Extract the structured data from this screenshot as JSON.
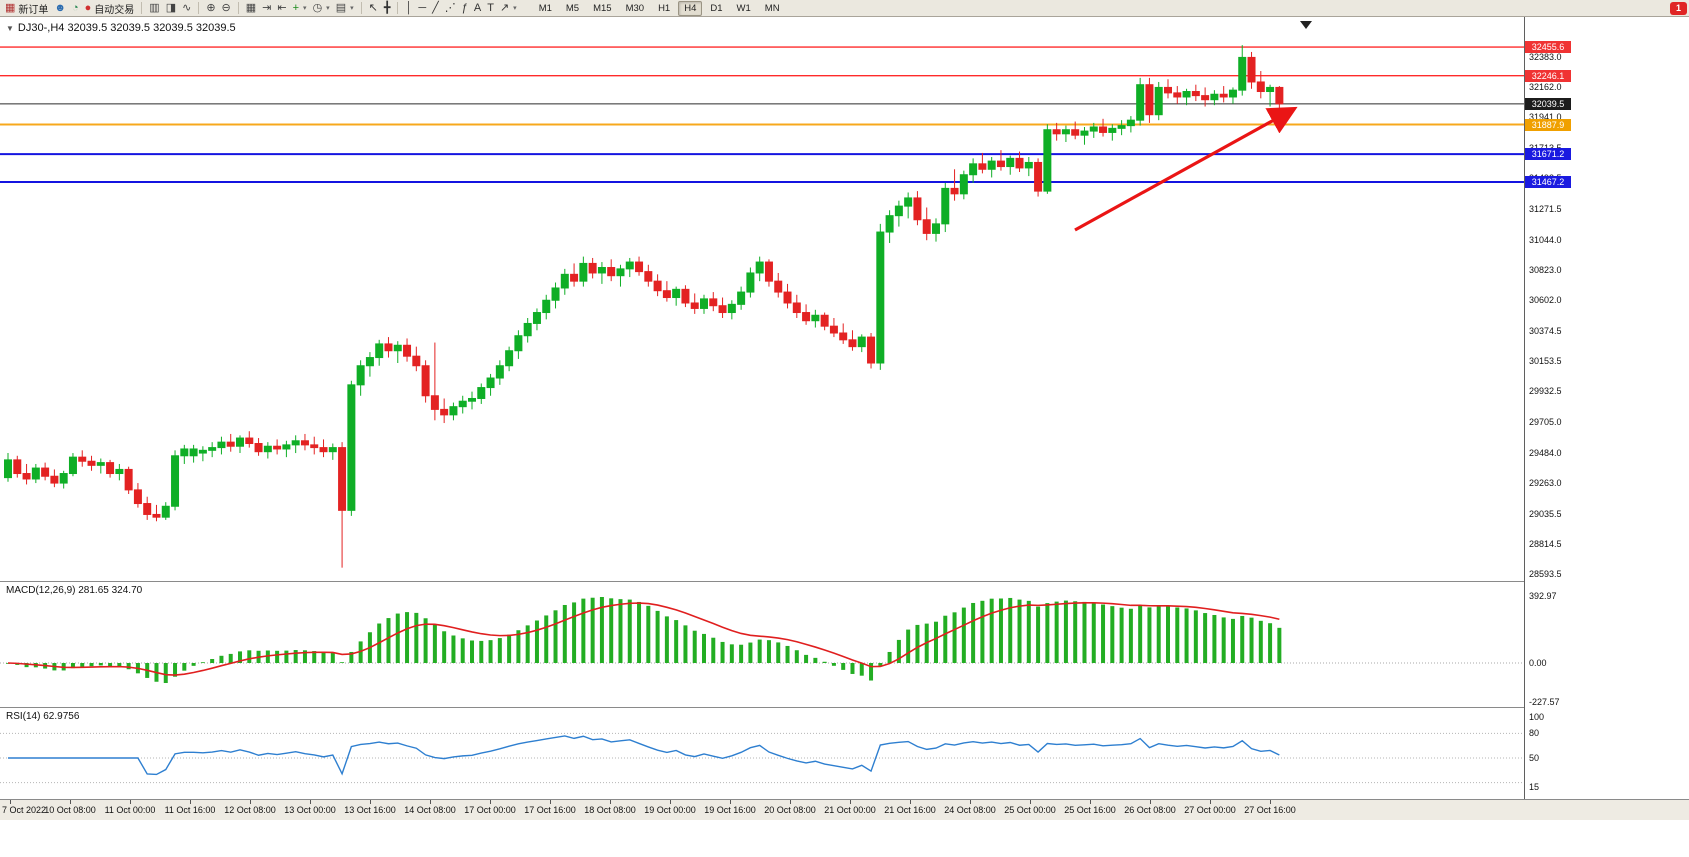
{
  "toolbar": {
    "items": [
      {
        "t": "btn",
        "name": "new-order-button",
        "glyph": "▦",
        "color": "#b03030",
        "label": "新订单"
      },
      {
        "t": "icon",
        "name": "profile-icon",
        "glyph": "☻",
        "color": "#2b6cb0"
      },
      {
        "t": "icon",
        "name": "data-window-icon",
        "glyph": "◔",
        "color": "#2e8b57"
      },
      {
        "t": "btn",
        "name": "autotrading-button",
        "glyph": "●",
        "color": "#d03030",
        "label": "自动交易"
      },
      {
        "t": "sep"
      },
      {
        "t": "icon",
        "name": "bar-chart-icon",
        "glyph": "▥",
        "color": "#444"
      },
      {
        "t": "icon",
        "name": "candlestick-chart-icon",
        "glyph": "◨",
        "color": "#444"
      },
      {
        "t": "icon",
        "name": "line-chart-icon",
        "glyph": "∿",
        "color": "#444"
      },
      {
        "t": "sep"
      },
      {
        "t": "icon",
        "name": "zoom-in-icon",
        "glyph": "⊕",
        "color": "#444"
      },
      {
        "t": "icon",
        "name": "zoom-out-icon",
        "glyph": "⊖",
        "color": "#444"
      },
      {
        "t": "sep"
      },
      {
        "t": "icon",
        "name": "tile-windows-icon",
        "glyph": "▦",
        "color": "#444"
      },
      {
        "t": "icon",
        "name": "auto-scroll-icon",
        "glyph": "⇥",
        "color": "#444"
      },
      {
        "t": "icon",
        "name": "chart-shift-icon",
        "glyph": "⇤",
        "color": "#444"
      },
      {
        "t": "dd",
        "name": "indicators-button",
        "glyph": "+",
        "color": "#1a8a1a"
      },
      {
        "t": "dd",
        "name": "periods-button",
        "glyph": "◷",
        "color": "#444"
      },
      {
        "t": "dd",
        "name": "templates-button",
        "glyph": "▤",
        "color": "#444"
      },
      {
        "t": "sep"
      },
      {
        "t": "icon",
        "name": "cursor-icon",
        "glyph": "↖",
        "color": "#333"
      },
      {
        "t": "icon",
        "name": "crosshair-icon",
        "glyph": "╋",
        "color": "#333"
      },
      {
        "t": "sep"
      },
      {
        "t": "icon",
        "name": "vertical-line-icon",
        "glyph": "│",
        "color": "#333"
      },
      {
        "t": "icon",
        "name": "horizontal-line-icon",
        "glyph": "─",
        "color": "#333"
      },
      {
        "t": "icon",
        "name": "trendline-icon",
        "glyph": "╱",
        "color": "#333"
      },
      {
        "t": "icon",
        "name": "channel-icon",
        "glyph": "⋰",
        "color": "#333"
      },
      {
        "t": "icon",
        "name": "fibonacci-icon",
        "glyph": "ƒ",
        "color": "#333"
      },
      {
        "t": "icon",
        "name": "text-icon",
        "glyph": "A",
        "color": "#333"
      },
      {
        "t": "icon",
        "name": "text-label-icon",
        "glyph": "T",
        "color": "#333"
      },
      {
        "t": "dd",
        "name": "arrows-button",
        "glyph": "↗",
        "color": "#333"
      }
    ],
    "timeframes": [
      "M1",
      "M5",
      "M15",
      "M30",
      "H1",
      "H4",
      "D1",
      "W1",
      "MN"
    ],
    "active_timeframe": "H4",
    "notification_count": "1"
  },
  "chart": {
    "title_full": "DJ30-,H4 32039.5 32039.5 32039.5 32039.5"
  },
  "macd": {
    "label": "MACD(12,26,9) 281.65 324.70"
  },
  "rsi": {
    "label": "RSI(14) 62.9756"
  },
  "colors": {
    "up": "#0fae26",
    "down": "#e32222",
    "macd_hist": "#23ad23",
    "macd_signal": "#e01f1f",
    "rsi_line": "#2e7fd0",
    "arrow": "#ea1515",
    "current_price_badge": "#1c1c1c",
    "resistance_line": "#ff2a2a",
    "pivot_line": "#f7a81c",
    "support_line": "#1414e0"
  },
  "chart_data": {
    "type": "candlestick",
    "symbol": "DJ30-",
    "timeframe": "H4",
    "last_close": 32039.5,
    "y_axis_ticks": [
      "32383.0",
      "32162.0",
      "31941.0",
      "31713.5",
      "31492.5",
      "31271.5",
      "31044.0",
      "30823.0",
      "30602.0",
      "30374.5",
      "30153.5",
      "29932.5",
      "29705.0",
      "29484.0",
      "29263.0",
      "29035.5",
      "28814.5",
      "28593.5"
    ],
    "x_labels": [
      "7 Oct 2022",
      "10 Oct 08:00",
      "11 Oct 00:00",
      "11 Oct 16:00",
      "12 Oct 08:00",
      "13 Oct 00:00",
      "13 Oct 16:00",
      "14 Oct 08:00",
      "17 Oct 00:00",
      "17 Oct 16:00",
      "18 Oct 08:00",
      "19 Oct 00:00",
      "19 Oct 16:00",
      "20 Oct 08:00",
      "21 Oct 00:00",
      "21 Oct 16:00",
      "24 Oct 08:00",
      "25 Oct 00:00",
      "25 Oct 16:00",
      "26 Oct 08:00",
      "27 Oct 00:00",
      "27 Oct 16:00"
    ],
    "levels": [
      {
        "label": "32455.6",
        "value": 32455.6,
        "color": "#ff2a2a",
        "width": 1.4,
        "badge_bg": "#f03333"
      },
      {
        "label": "32246.1",
        "value": 32246.1,
        "color": "#ff2a2a",
        "width": 1.4,
        "badge_bg": "#f03333"
      },
      {
        "label": "32039.5",
        "value": 32039.5,
        "color": "#2b2b2b",
        "width": 1.1,
        "badge_bg": "#1c1c1c"
      },
      {
        "label": "31887.9",
        "value": 31887.9,
        "color": "#f7a81c",
        "width": 2,
        "badge_bg": "#f0a000"
      },
      {
        "label": "31671.2",
        "value": 31671.2,
        "color": "#1414e0",
        "width": 2,
        "badge_bg": "#1a1ae0"
      },
      {
        "label": "31467.2",
        "value": 31467.2,
        "color": "#1414e0",
        "width": 2,
        "badge_bg": "#1a1ae0"
      }
    ],
    "ohlc": [
      [
        29300,
        29480,
        29270,
        29430
      ],
      [
        29430,
        29460,
        29300,
        29330
      ],
      [
        29330,
        29400,
        29250,
        29290
      ],
      [
        29290,
        29400,
        29260,
        29370
      ],
      [
        29370,
        29410,
        29280,
        29310
      ],
      [
        29310,
        29360,
        29230,
        29260
      ],
      [
        29260,
        29350,
        29220,
        29330
      ],
      [
        29330,
        29480,
        29310,
        29450
      ],
      [
        29450,
        29500,
        29380,
        29420
      ],
      [
        29420,
        29460,
        29350,
        29390
      ],
      [
        29390,
        29440,
        29330,
        29410
      ],
      [
        29410,
        29430,
        29300,
        29330
      ],
      [
        29330,
        29400,
        29280,
        29360
      ],
      [
        29360,
        29380,
        29180,
        29210
      ],
      [
        29210,
        29260,
        29080,
        29110
      ],
      [
        29110,
        29160,
        28990,
        29030
      ],
      [
        29030,
        29100,
        28980,
        29010
      ],
      [
        29010,
        29120,
        28990,
        29090
      ],
      [
        29090,
        29500,
        29060,
        29460
      ],
      [
        29460,
        29540,
        29400,
        29510
      ],
      [
        29460,
        29540,
        29410,
        29510
      ],
      [
        29480,
        29530,
        29420,
        29500
      ],
      [
        29500,
        29560,
        29450,
        29520
      ],
      [
        29520,
        29600,
        29470,
        29560
      ],
      [
        29560,
        29620,
        29490,
        29530
      ],
      [
        29530,
        29610,
        29480,
        29590
      ],
      [
        29590,
        29640,
        29520,
        29550
      ],
      [
        29550,
        29590,
        29460,
        29490
      ],
      [
        29490,
        29560,
        29440,
        29530
      ],
      [
        29530,
        29580,
        29470,
        29510
      ],
      [
        29510,
        29570,
        29450,
        29540
      ],
      [
        29540,
        29610,
        29480,
        29570
      ],
      [
        29570,
        29620,
        29500,
        29540
      ],
      [
        29540,
        29600,
        29470,
        29520
      ],
      [
        29520,
        29580,
        29450,
        29490
      ],
      [
        29490,
        29550,
        29430,
        29520
      ],
      [
        29520,
        29560,
        28640,
        29060
      ],
      [
        29060,
        30010,
        29020,
        29980
      ],
      [
        29980,
        30160,
        29900,
        30120
      ],
      [
        30120,
        30220,
        30040,
        30180
      ],
      [
        30180,
        30310,
        30120,
        30280
      ],
      [
        30280,
        30330,
        30180,
        30230
      ],
      [
        30230,
        30300,
        30140,
        30270
      ],
      [
        30270,
        30320,
        30150,
        30190
      ],
      [
        30190,
        30260,
        30080,
        30120
      ],
      [
        30120,
        30160,
        29850,
        29900
      ],
      [
        29900,
        30290,
        29720,
        29800
      ],
      [
        29800,
        29880,
        29700,
        29760
      ],
      [
        29760,
        29850,
        29720,
        29820
      ],
      [
        29820,
        29900,
        29770,
        29860
      ],
      [
        29860,
        29930,
        29800,
        29880
      ],
      [
        29880,
        29990,
        29840,
        29960
      ],
      [
        29960,
        30060,
        29900,
        30030
      ],
      [
        30030,
        30160,
        29980,
        30120
      ],
      [
        30120,
        30260,
        30080,
        30230
      ],
      [
        30230,
        30380,
        30170,
        30340
      ],
      [
        30340,
        30470,
        30290,
        30430
      ],
      [
        30430,
        30540,
        30380,
        30510
      ],
      [
        30510,
        30640,
        30460,
        30600
      ],
      [
        30600,
        30730,
        30540,
        30690
      ],
      [
        30690,
        30830,
        30640,
        30790
      ],
      [
        30790,
        30870,
        30700,
        30740
      ],
      [
        30740,
        30920,
        30700,
        30870
      ],
      [
        30870,
        30910,
        30760,
        30800
      ],
      [
        30800,
        30880,
        30720,
        30840
      ],
      [
        30840,
        30900,
        30740,
        30780
      ],
      [
        30780,
        30860,
        30700,
        30830
      ],
      [
        30830,
        30910,
        30770,
        30880
      ],
      [
        30880,
        30920,
        30780,
        30810
      ],
      [
        30810,
        30860,
        30700,
        30740
      ],
      [
        30740,
        30790,
        30630,
        30670
      ],
      [
        30670,
        30740,
        30590,
        30620
      ],
      [
        30620,
        30700,
        30560,
        30680
      ],
      [
        30680,
        30710,
        30550,
        30580
      ],
      [
        30580,
        30650,
        30500,
        30540
      ],
      [
        30540,
        30640,
        30500,
        30610
      ],
      [
        30610,
        30660,
        30520,
        30560
      ],
      [
        30560,
        30620,
        30470,
        30510
      ],
      [
        30510,
        30600,
        30460,
        30570
      ],
      [
        30570,
        30700,
        30530,
        30660
      ],
      [
        30660,
        30840,
        30620,
        30800
      ],
      [
        30800,
        30920,
        30740,
        30880
      ],
      [
        30880,
        30900,
        30700,
        30740
      ],
      [
        30740,
        30800,
        30620,
        30660
      ],
      [
        30660,
        30720,
        30540,
        30580
      ],
      [
        30580,
        30640,
        30470,
        30510
      ],
      [
        30510,
        30570,
        30420,
        30450
      ],
      [
        30450,
        30530,
        30400,
        30490
      ],
      [
        30490,
        30510,
        30380,
        30410
      ],
      [
        30410,
        30470,
        30330,
        30360
      ],
      [
        30360,
        30430,
        30280,
        30310
      ],
      [
        30310,
        30380,
        30230,
        30260
      ],
      [
        30260,
        30350,
        30220,
        30330
      ],
      [
        30330,
        30360,
        30100,
        30140
      ],
      [
        30140,
        31160,
        30090,
        31100
      ],
      [
        31100,
        31260,
        31020,
        31220
      ],
      [
        31220,
        31330,
        31140,
        31290
      ],
      [
        31290,
        31390,
        31200,
        31350
      ],
      [
        31350,
        31400,
        31150,
        31190
      ],
      [
        31190,
        31280,
        31040,
        31090
      ],
      [
        31090,
        31200,
        31030,
        31160
      ],
      [
        31160,
        31460,
        31100,
        31420
      ],
      [
        31420,
        31560,
        31330,
        31380
      ],
      [
        31380,
        31550,
        31340,
        31520
      ],
      [
        31520,
        31640,
        31460,
        31600
      ],
      [
        31600,
        31680,
        31530,
        31560
      ],
      [
        31560,
        31650,
        31500,
        31620
      ],
      [
        31620,
        31700,
        31550,
        31580
      ],
      [
        31580,
        31660,
        31520,
        31640
      ],
      [
        31640,
        31690,
        31540,
        31570
      ],
      [
        31570,
        31650,
        31510,
        31610
      ],
      [
        31610,
        31640,
        31360,
        31400
      ],
      [
        31400,
        31890,
        31380,
        31850
      ],
      [
        31850,
        31900,
        31770,
        31820
      ],
      [
        31820,
        31880,
        31760,
        31850
      ],
      [
        31850,
        31910,
        31780,
        31810
      ],
      [
        31810,
        31870,
        31740,
        31840
      ],
      [
        31840,
        31900,
        31790,
        31870
      ],
      [
        31870,
        31930,
        31800,
        31830
      ],
      [
        31830,
        31890,
        31770,
        31860
      ],
      [
        31860,
        31920,
        31810,
        31880
      ],
      [
        31880,
        31950,
        31830,
        31920
      ],
      [
        31920,
        32230,
        31880,
        32180
      ],
      [
        32180,
        32230,
        31900,
        31960
      ],
      [
        31960,
        32200,
        31920,
        32160
      ],
      [
        32160,
        32220,
        32080,
        32120
      ],
      [
        32120,
        32170,
        32040,
        32090
      ],
      [
        32090,
        32150,
        32030,
        32130
      ],
      [
        32130,
        32180,
        32060,
        32100
      ],
      [
        32100,
        32160,
        32020,
        32070
      ],
      [
        32070,
        32140,
        32030,
        32110
      ],
      [
        32110,
        32170,
        32050,
        32090
      ],
      [
        32090,
        32160,
        32040,
        32140
      ],
      [
        32140,
        32470,
        32100,
        32380
      ],
      [
        32380,
        32420,
        32150,
        32200
      ],
      [
        32200,
        32280,
        32080,
        32130
      ],
      [
        32130,
        32180,
        32020,
        32160
      ],
      [
        32160,
        32170,
        31990,
        32039.5
      ]
    ],
    "indicators": [
      {
        "type": "MACD",
        "fast": 12,
        "slow": 26,
        "signal": 9,
        "current_macd": 281.65,
        "current_signal": 324.7,
        "y_ticks": [
          "392.97",
          "0.00",
          "-227.57"
        ]
      },
      {
        "type": "RSI",
        "period": 14,
        "current": 62.9756,
        "y_ticks": [
          "100",
          "80",
          "50",
          "15"
        ],
        "levels": [
          80,
          50,
          20
        ]
      }
    ],
    "annotations": [
      {
        "type": "arrow",
        "color": "#ea1515",
        "note": "upward trend arrow pointing toward price 32039.5"
      }
    ]
  }
}
